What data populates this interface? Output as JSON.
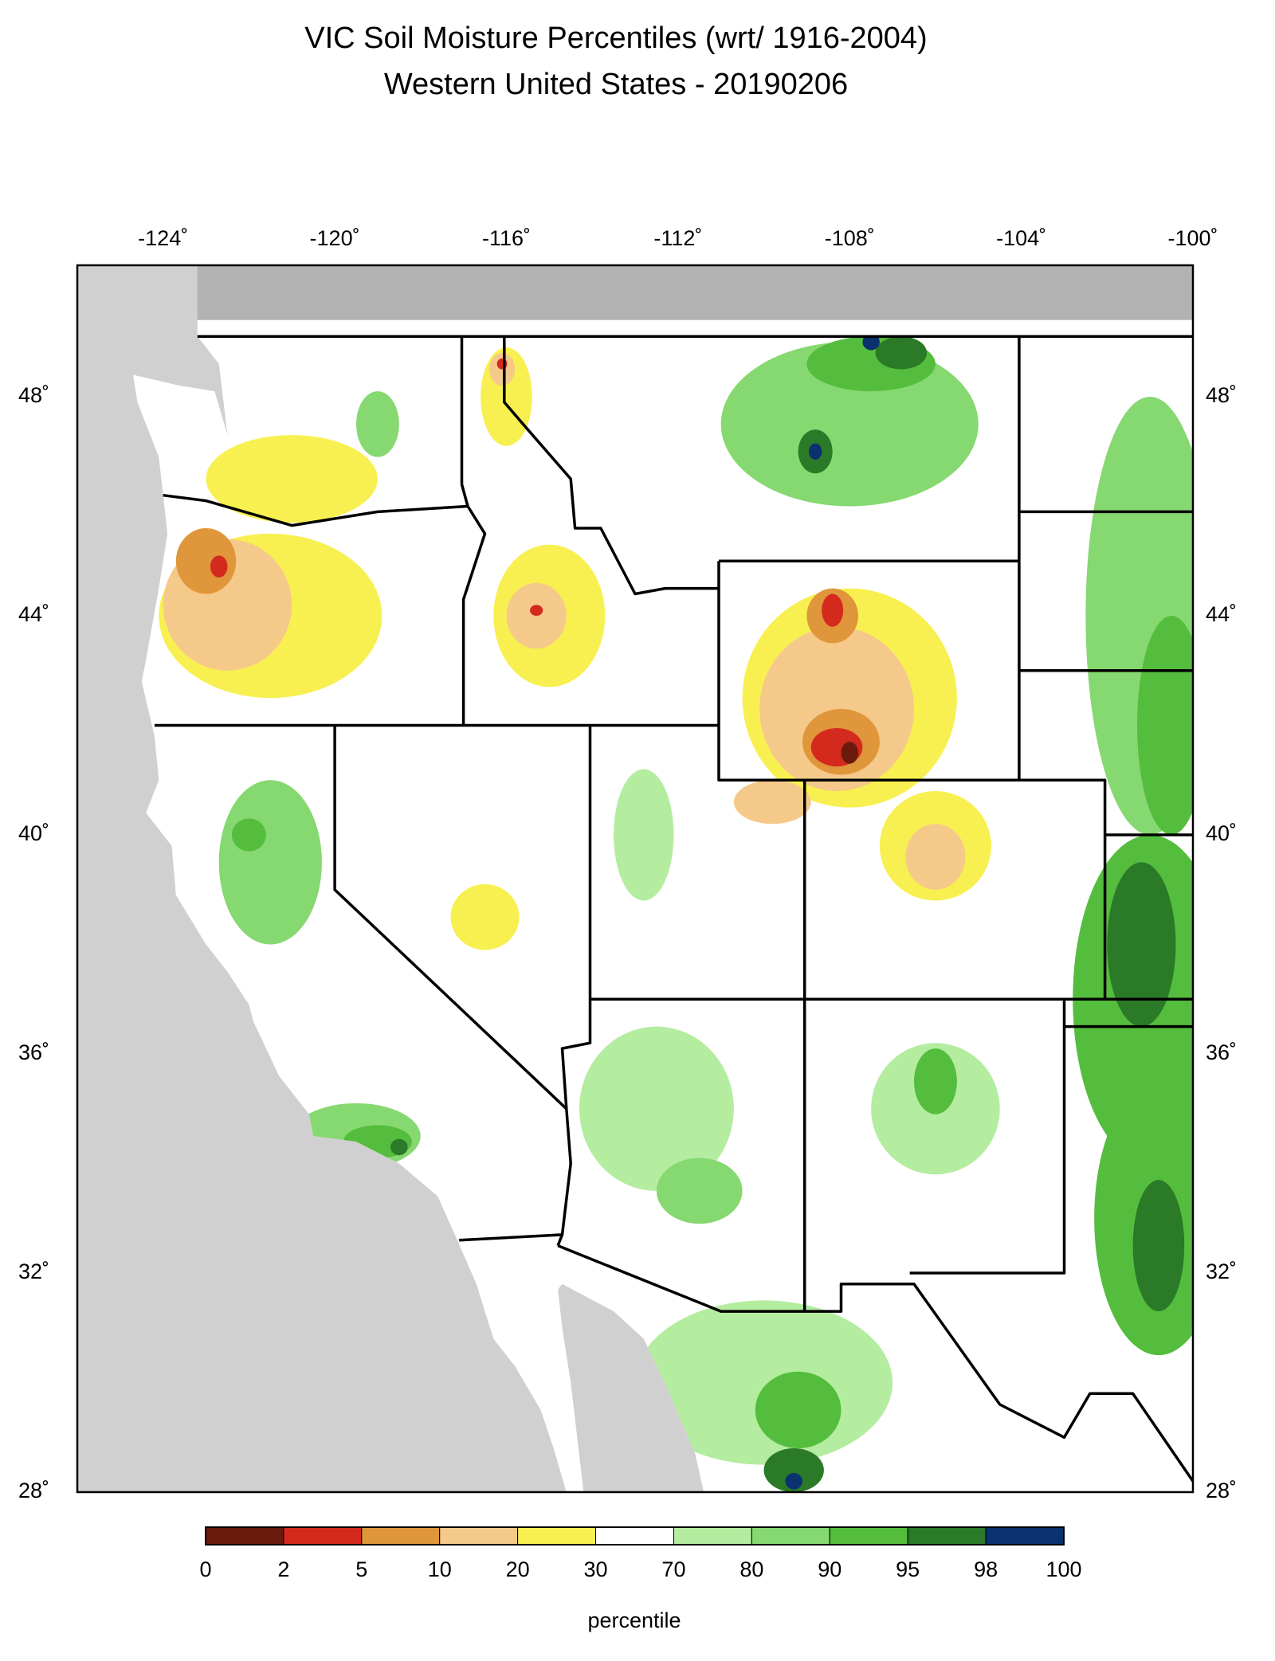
{
  "map": {
    "title": "VIC Soil Moisture Percentiles (wrt/ 1916-2004)",
    "subtitle": "Western United States - 20190206",
    "xlim": [
      -126,
      -100
    ],
    "ylim": [
      28,
      50.4
    ],
    "xticks": [
      {
        "value": -124,
        "label": "-124˚"
      },
      {
        "value": -120,
        "label": "-120˚"
      },
      {
        "value": -116,
        "label": "-116˚"
      },
      {
        "value": -112,
        "label": "-112˚"
      },
      {
        "value": -108,
        "label": "-108˚"
      },
      {
        "value": -104,
        "label": "-104˚"
      },
      {
        "value": -100,
        "label": "-100˚"
      }
    ],
    "yticks": [
      {
        "value": 48,
        "label": "48˚"
      },
      {
        "value": 44,
        "label": "44˚"
      },
      {
        "value": 40,
        "label": "40˚"
      },
      {
        "value": 36,
        "label": "36˚"
      },
      {
        "value": 32,
        "label": "32˚"
      },
      {
        "value": 28,
        "label": "28˚"
      }
    ],
    "colorbar": {
      "label": "percentile",
      "bins": [
        0,
        2,
        5,
        10,
        20,
        30,
        70,
        80,
        90,
        95,
        98,
        100
      ],
      "colors": [
        "#6b1a0e",
        "#d42a1e",
        "#e0963a",
        "#f5c98a",
        "#f8f050",
        "#ffffff",
        "#b4eca0",
        "#86d870",
        "#55bd3d",
        "#2a7a28",
        "#0a3170"
      ]
    }
  }
}
